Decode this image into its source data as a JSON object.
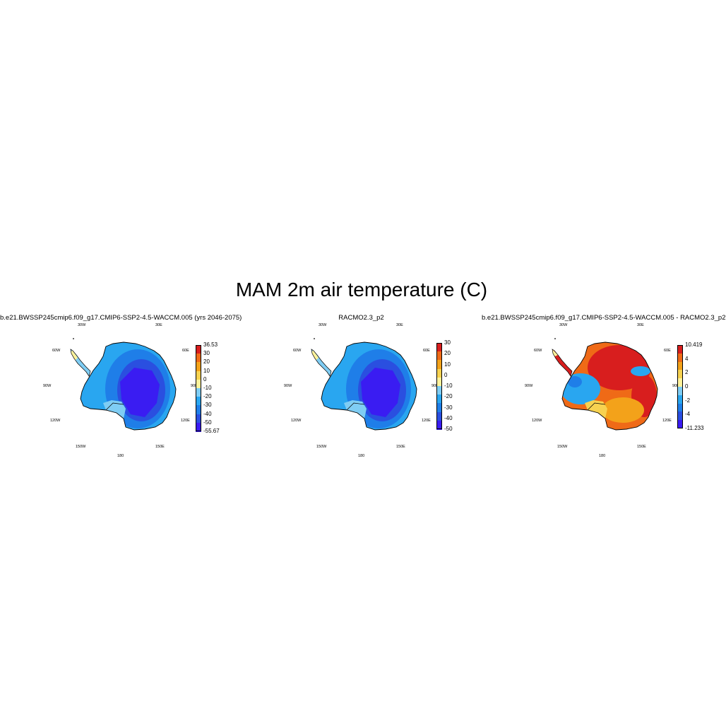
{
  "title": "MAM 2m air temperature (C)",
  "lon_labels": [
    "30W",
    "30E",
    "60W",
    "60E",
    "90W",
    "90E",
    "120W",
    "120E",
    "150W",
    "150E",
    "180"
  ],
  "colors": {
    "abs_scale": [
      "#3a1cf2",
      "#2a4fe0",
      "#1f7ee8",
      "#29a6f0",
      "#7fcdf4",
      "#fff29a",
      "#f7d250",
      "#f3a21a",
      "#ef6a17",
      "#d81e1e"
    ],
    "diff_scale": [
      "#3a1cf2",
      "#2a4fe0",
      "#1f7ee8",
      "#29a6f0",
      "#7fcdf4",
      "#fff29a",
      "#f7d250",
      "#f3a21a",
      "#ef6a17",
      "#d81e1e"
    ]
  },
  "panels": [
    {
      "title": "b.e21.BWSSP245cmip6.f09_g17.CMIP6-SSP2-4.5-WACCM.005 (yrs 2046-2075)",
      "colorbar": [
        "36.53",
        "30",
        "20",
        "10",
        "0",
        "-10",
        "-20",
        "-30",
        "-40",
        "-50",
        "-55.67"
      ],
      "scale": "abs"
    },
    {
      "title": "RACMO2.3_p2",
      "colorbar": [
        "30",
        "20",
        "10",
        "0",
        "-10",
        "-20",
        "-30",
        "-40",
        "-50"
      ],
      "scale": "abs"
    },
    {
      "title": "b.e21.BWSSP245cmip6.f09_g17.CMIP6-SSP2-4.5-WACCM.005 - RACMO2.3_p2",
      "colorbar": [
        "10.419",
        "4",
        "2",
        "0",
        "-2",
        "-4",
        "-11.233"
      ],
      "scale": "diff"
    }
  ]
}
